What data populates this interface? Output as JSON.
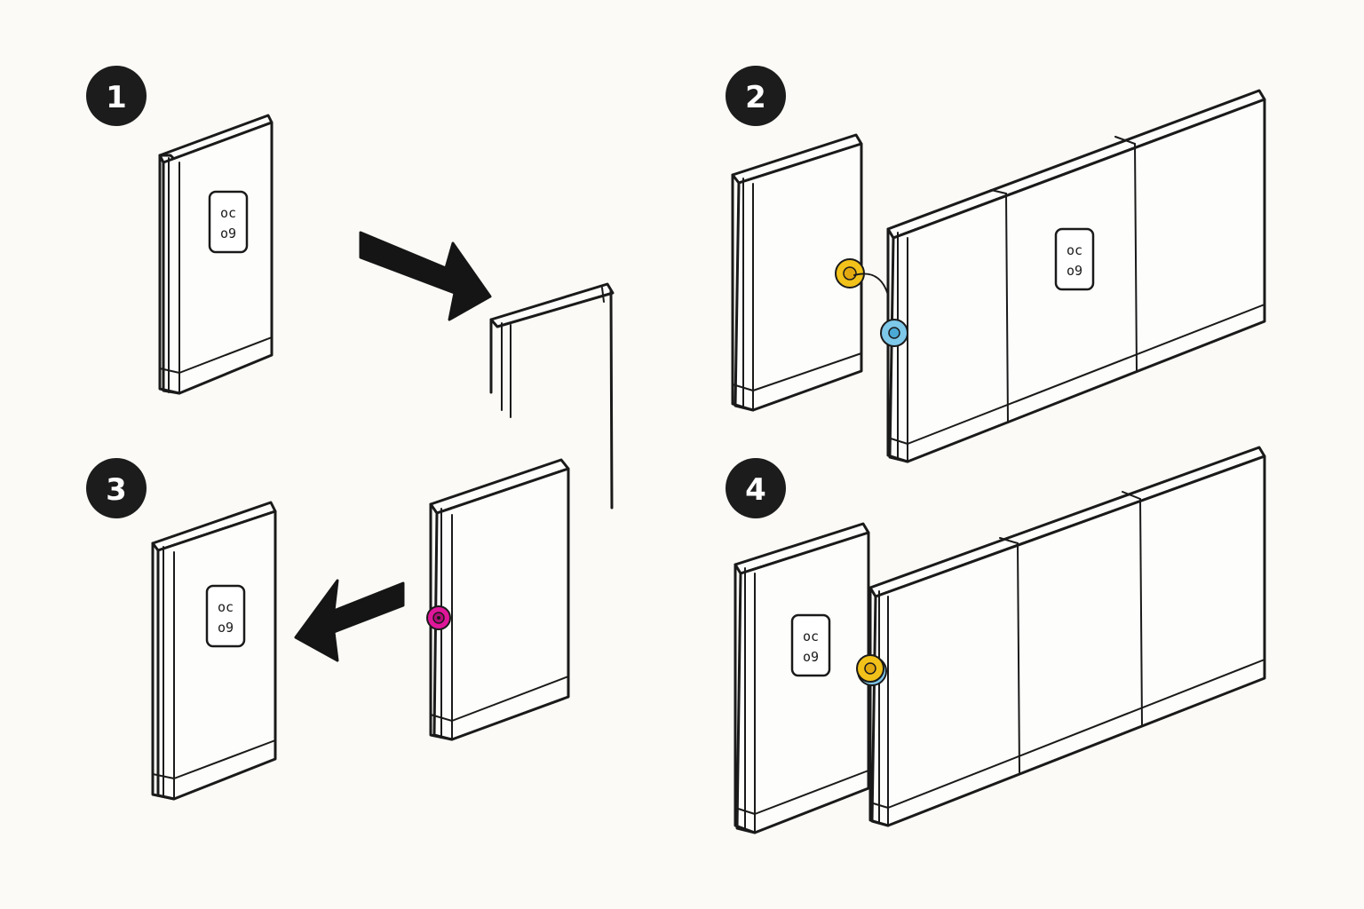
{
  "colors": {
    "ink": "#1a1a1a",
    "background": "#fbfaf6",
    "badge": "#1c1c1c",
    "magenta_knob": "#e0169a",
    "yellow_knob": "#f2c21a",
    "blue_knob": "#7ec8ea"
  },
  "steps": [
    {
      "number": "1"
    },
    {
      "number": "2"
    },
    {
      "number": "3"
    },
    {
      "number": "4"
    }
  ],
  "icons": [
    "outlet-icon",
    "arrow-right-icon",
    "arrow-left-icon",
    "knob-icon"
  ]
}
